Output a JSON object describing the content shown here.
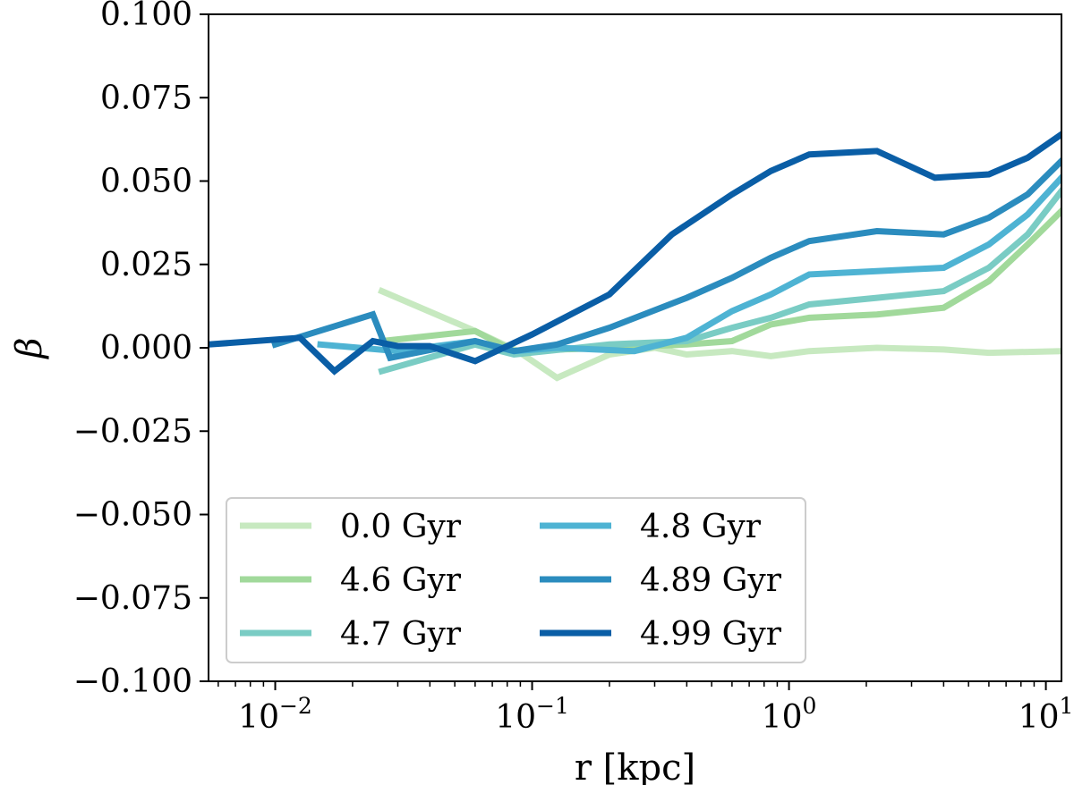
{
  "chart_data": {
    "type": "line",
    "title": "",
    "xlabel": "r [kpc]",
    "ylabel": "β",
    "xscale": "log",
    "xlim": [
      0.0055,
      11.5
    ],
    "ylim": [
      -0.1,
      0.1
    ],
    "grid": false,
    "legend_location": "lower-left",
    "legend_columns": 2,
    "y_ticks": [
      0.1,
      0.075,
      0.05,
      0.025,
      0.0,
      -0.025,
      -0.05,
      -0.075,
      -0.1
    ],
    "y_tick_labels": [
      "0.100",
      "0.075",
      "0.050",
      "0.025",
      "0.000",
      "−0.025",
      "−0.050",
      "−0.075",
      "−0.100"
    ],
    "x_ticks": [
      0.01,
      0.1,
      1,
      10
    ],
    "x_tick_labels": [
      {
        "base": "10",
        "exp": "−2"
      },
      {
        "base": "10",
        "exp": "−1"
      },
      {
        "base": "10",
        "exp": "0"
      },
      {
        "base": "10",
        "exp": "1"
      }
    ],
    "series": [
      {
        "name": "0.0 Gyr",
        "color": "#c7e9c0",
        "x": [
          0.026,
          0.06,
          0.088,
          0.125,
          0.2,
          0.3,
          0.4,
          0.6,
          0.85,
          1.2,
          2.2,
          4.0,
          6.0,
          11.5
        ],
        "y": [
          0.017,
          0.005,
          -0.001,
          -0.009,
          -0.002,
          0.0,
          -0.002,
          -0.001,
          -0.0025,
          -0.001,
          0.0,
          -0.0005,
          -0.0015,
          -0.001
        ]
      },
      {
        "name": "4.6 Gyr",
        "color": "#a1d99b",
        "x": [
          0.026,
          0.06,
          0.085,
          0.2,
          0.4,
          0.6,
          0.85,
          1.2,
          2.2,
          4.0,
          6.0,
          8.5,
          11.5
        ],
        "y": [
          0.002,
          0.005,
          -0.001,
          0.0,
          0.001,
          0.002,
          0.007,
          0.009,
          0.01,
          0.012,
          0.02,
          0.031,
          0.041
        ]
      },
      {
        "name": "4.7 Gyr",
        "color": "#7accc4",
        "x": [
          0.026,
          0.06,
          0.085,
          0.2,
          0.4,
          0.6,
          0.85,
          1.2,
          2.2,
          4.0,
          6.0,
          8.5,
          11.5
        ],
        "y": [
          -0.007,
          0.001,
          -0.002,
          0.001,
          0.002,
          0.006,
          0.009,
          0.013,
          0.015,
          0.017,
          0.024,
          0.034,
          0.047
        ]
      },
      {
        "name": "4.8 Gyr",
        "color": "#4eb3d3",
        "x": [
          0.015,
          0.03,
          0.06,
          0.085,
          0.125,
          0.25,
          0.4,
          0.6,
          0.85,
          1.2,
          2.2,
          4.0,
          6.0,
          8.5,
          11.5
        ],
        "y": [
          0.001,
          -0.001,
          0.002,
          -0.001,
          0.0,
          -0.001,
          0.003,
          0.011,
          0.016,
          0.022,
          0.023,
          0.024,
          0.031,
          0.04,
          0.051
        ]
      },
      {
        "name": "4.89 Gyr",
        "color": "#2b8cbe",
        "x": [
          0.01,
          0.024,
          0.028,
          0.06,
          0.085,
          0.125,
          0.2,
          0.4,
          0.6,
          0.85,
          1.2,
          2.2,
          4.0,
          6.0,
          8.5,
          11.5
        ],
        "y": [
          0.001,
          0.01,
          -0.003,
          0.002,
          -0.001,
          0.001,
          0.006,
          0.015,
          0.021,
          0.027,
          0.032,
          0.035,
          0.034,
          0.039,
          0.046,
          0.056
        ]
      },
      {
        "name": "4.99 Gyr",
        "color": "#0a5ea6",
        "x": [
          0.0055,
          0.0125,
          0.017,
          0.024,
          0.03,
          0.04,
          0.06,
          0.1,
          0.2,
          0.35,
          0.6,
          0.85,
          1.2,
          2.2,
          3.7,
          6.0,
          8.5,
          11.5
        ],
        "y": [
          0.001,
          0.003,
          -0.007,
          0.002,
          0.0005,
          0.0005,
          -0.004,
          0.004,
          0.016,
          0.034,
          0.046,
          0.053,
          0.058,
          0.059,
          0.051,
          0.052,
          0.057,
          0.064
        ]
      }
    ]
  }
}
